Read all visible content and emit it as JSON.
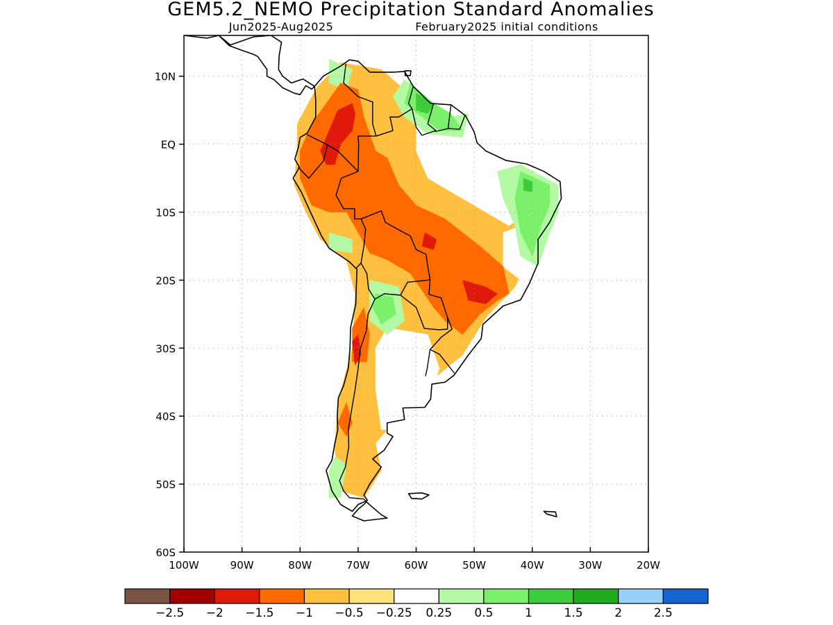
{
  "title": "GEM5.2_NEMO Precipitation Standard Anomalies",
  "subtitle_left": "Jun2025-Aug2025",
  "subtitle_right": "February2025 initial conditions",
  "map": {
    "lon_range": [
      -100,
      -20
    ],
    "lat_range": [
      -60,
      16
    ],
    "grid": true,
    "x_ticks": [
      {
        "lon": -100,
        "label": "100W"
      },
      {
        "lon": -90,
        "label": "90W"
      },
      {
        "lon": -80,
        "label": "80W"
      },
      {
        "lon": -70,
        "label": "70W"
      },
      {
        "lon": -60,
        "label": "60W"
      },
      {
        "lon": -50,
        "label": "50W"
      },
      {
        "lon": -40,
        "label": "40W"
      },
      {
        "lon": -30,
        "label": "30W"
      },
      {
        "lon": -20,
        "label": "20W"
      }
    ],
    "y_ticks": [
      {
        "lat": 10,
        "label": "10N"
      },
      {
        "lat": 0,
        "label": "EQ"
      },
      {
        "lat": -10,
        "label": "10S"
      },
      {
        "lat": -20,
        "label": "20S"
      },
      {
        "lat": -30,
        "label": "30S"
      },
      {
        "lat": -40,
        "label": "40S"
      },
      {
        "lat": -50,
        "label": "50S"
      },
      {
        "lat": -60,
        "label": "60S"
      }
    ]
  },
  "colorbar": {
    "colors": [
      "#7b5345",
      "#a40000",
      "#e01a0a",
      "#ff6a00",
      "#ffbf3f",
      "#ffe27a",
      "#ffffff",
      "#b4f9a4",
      "#7bf06b",
      "#3ccc3c",
      "#1fac1f",
      "#96d2fa",
      "#1464d2"
    ],
    "labels": [
      "-2.5",
      "-2",
      "-1.5",
      "-1",
      "-0.5",
      "-0.25",
      "0.25",
      "0.5",
      "1",
      "1.5",
      "2",
      "2.5"
    ]
  },
  "anomaly_regions": [
    {
      "level": "-0.5",
      "color": "#ffbf3f",
      "points": [
        [
          -80.5,
          3
        ],
        [
          -77,
          8.5
        ],
        [
          -73,
          12
        ],
        [
          -66,
          11
        ],
        [
          -62,
          8
        ],
        [
          -58,
          3.5
        ],
        [
          -52,
          -1
        ],
        [
          -44,
          -3
        ],
        [
          -40,
          -6
        ],
        [
          -39,
          -10
        ],
        [
          -40,
          -16
        ],
        [
          -43,
          -21
        ],
        [
          -48,
          -25.5
        ],
        [
          -52,
          -31
        ],
        [
          -57,
          -34.5
        ],
        [
          -61,
          -38
        ],
        [
          -64,
          -41
        ],
        [
          -67,
          -44
        ],
        [
          -66,
          -48
        ],
        [
          -69,
          -52
        ],
        [
          -73,
          -51
        ],
        [
          -74,
          -45
        ],
        [
          -73.5,
          -38
        ],
        [
          -71,
          -30
        ],
        [
          -70.5,
          -22
        ],
        [
          -72,
          -17
        ],
        [
          -76.5,
          -14
        ],
        [
          -79,
          -10
        ],
        [
          -81,
          -6
        ],
        [
          -80.5,
          -1
        ]
      ]
    },
    {
      "level": "0.25",
      "color": "#ffffff",
      "points": [
        [
          -60,
          4
        ],
        [
          -52,
          2
        ],
        [
          -46,
          0
        ],
        [
          -40,
          -3
        ],
        [
          -38,
          -8
        ],
        [
          -44,
          -12
        ],
        [
          -52,
          -8
        ],
        [
          -58,
          -5
        ],
        [
          -60,
          -1
        ]
      ]
    },
    {
      "level": "0.25",
      "color": "#ffffff",
      "points": [
        [
          -65,
          -27
        ],
        [
          -58,
          -28
        ],
        [
          -56,
          -33
        ],
        [
          -58,
          -38
        ],
        [
          -62,
          -39.5
        ],
        [
          -64,
          -42
        ],
        [
          -66,
          -42
        ],
        [
          -67,
          -36
        ],
        [
          -67,
          -30
        ]
      ]
    },
    {
      "level": "0.25",
      "color": "#ffffff",
      "points": [
        [
          -42,
          -12
        ],
        [
          -40,
          -18
        ],
        [
          -42,
          -20
        ],
        [
          -45,
          -18
        ],
        [
          -45,
          -13
        ]
      ]
    },
    {
      "level": "0.25",
      "color": "#ffffff",
      "points": [
        [
          -68,
          -52
        ],
        [
          -69,
          -54
        ],
        [
          -66,
          -55
        ],
        [
          -64,
          -54.5
        ],
        [
          -66,
          -52
        ]
      ]
    },
    {
      "level": "0.5",
      "color": "#b4f9a4",
      "points": [
        [
          -62,
          9.5
        ],
        [
          -57,
          6
        ],
        [
          -54,
          4
        ],
        [
          -51,
          4.5
        ],
        [
          -52,
          1
        ],
        [
          -58,
          1.5
        ],
        [
          -62,
          4
        ],
        [
          -64,
          7
        ]
      ]
    },
    {
      "level": "0.5",
      "color": "#b4f9a4",
      "points": [
        [
          -42,
          -3
        ],
        [
          -35.5,
          -6
        ],
        [
          -35.5,
          -10
        ],
        [
          -37,
          -13
        ],
        [
          -39,
          -18
        ],
        [
          -42,
          -16.5
        ],
        [
          -43,
          -12
        ],
        [
          -45,
          -8
        ],
        [
          -46,
          -4
        ]
      ]
    },
    {
      "level": "0.5",
      "color": "#b4f9a4",
      "points": [
        [
          -68,
          -20
        ],
        [
          -63,
          -21
        ],
        [
          -62,
          -26
        ],
        [
          -65,
          -28
        ],
        [
          -68,
          -26
        ]
      ]
    },
    {
      "level": "0.5",
      "color": "#b4f9a4",
      "points": [
        [
          -75,
          12.5
        ],
        [
          -71,
          11
        ],
        [
          -72,
          8
        ],
        [
          -75,
          9
        ]
      ]
    },
    {
      "level": "0.5",
      "color": "#b4f9a4",
      "points": [
        [
          -75,
          -13
        ],
        [
          -71,
          -14
        ],
        [
          -71,
          -16
        ],
        [
          -75,
          -15.5
        ]
      ]
    },
    {
      "level": "0.5",
      "color": "#b4f9a4",
      "points": [
        [
          -74,
          -46
        ],
        [
          -72,
          -47
        ],
        [
          -73,
          -52
        ],
        [
          -75,
          -52
        ],
        [
          -75,
          -48
        ]
      ]
    },
    {
      "level": "1",
      "color": "#7bf06b",
      "points": [
        [
          -61,
          9
        ],
        [
          -57,
          6
        ],
        [
          -54,
          4.5
        ],
        [
          -52,
          2
        ],
        [
          -56,
          2
        ],
        [
          -59,
          4
        ],
        [
          -62,
          6
        ]
      ]
    },
    {
      "level": "1",
      "color": "#7bf06b",
      "points": [
        [
          -42,
          -4
        ],
        [
          -37,
          -6
        ],
        [
          -37,
          -9
        ],
        [
          -38.5,
          -12
        ],
        [
          -40,
          -16.5
        ],
        [
          -42,
          -13
        ],
        [
          -43,
          -8
        ]
      ]
    },
    {
      "level": "1",
      "color": "#7bf06b",
      "points": [
        [
          -67,
          -22
        ],
        [
          -64,
          -22.5
        ],
        [
          -63.5,
          -25
        ],
        [
          -66,
          -26.5
        ],
        [
          -67.5,
          -24
        ]
      ]
    },
    {
      "level": "1.5",
      "color": "#3ccc3c",
      "points": [
        [
          -60,
          7.5
        ],
        [
          -57,
          6
        ],
        [
          -58,
          4.5
        ],
        [
          -60,
          5
        ]
      ]
    },
    {
      "level": "1.5",
      "color": "#3ccc3c",
      "points": [
        [
          -41.5,
          -5
        ],
        [
          -40,
          -5.5
        ],
        [
          -40,
          -7
        ],
        [
          -41.5,
          -6.8
        ]
      ]
    },
    {
      "level": "-1",
      "color": "#ff6a00",
      "points": [
        [
          -80,
          -1
        ],
        [
          -78,
          3
        ],
        [
          -75.5,
          6
        ],
        [
          -73,
          9
        ],
        [
          -70,
          8
        ],
        [
          -69,
          4
        ],
        [
          -67,
          -1
        ],
        [
          -65,
          -2
        ],
        [
          -63,
          -6
        ],
        [
          -60,
          -9
        ],
        [
          -55,
          -11
        ],
        [
          -49,
          -15
        ],
        [
          -45,
          -18
        ],
        [
          -44,
          -22
        ],
        [
          -46,
          -23
        ],
        [
          -49,
          -25
        ],
        [
          -52,
          -28
        ],
        [
          -55,
          -26
        ],
        [
          -57,
          -24
        ],
        [
          -61,
          -19
        ],
        [
          -65,
          -17
        ],
        [
          -68,
          -16
        ],
        [
          -70,
          -13
        ],
        [
          -72,
          -10
        ],
        [
          -75,
          -10
        ],
        [
          -78,
          -9
        ],
        [
          -80,
          -5
        ]
      ]
    },
    {
      "level": "-1",
      "color": "#ff6a00",
      "points": [
        [
          -69,
          -24
        ],
        [
          -68,
          -28
        ],
        [
          -68.5,
          -32
        ],
        [
          -71,
          -32
        ],
        [
          -71,
          -27
        ]
      ]
    },
    {
      "level": "-1",
      "color": "#ff6a00",
      "points": [
        [
          -72,
          -38
        ],
        [
          -71,
          -41
        ],
        [
          -72,
          -43
        ],
        [
          -73.5,
          -41
        ]
      ]
    },
    {
      "level": "-1.5",
      "color": "#e01a0a",
      "points": [
        [
          -76.5,
          -1
        ],
        [
          -75,
          2
        ],
        [
          -73.5,
          5
        ],
        [
          -71,
          6
        ],
        [
          -70.5,
          4.5
        ],
        [
          -71,
          2
        ],
        [
          -73,
          0
        ],
        [
          -74,
          -3
        ],
        [
          -75.5,
          -3
        ]
      ]
    },
    {
      "level": "-1.5",
      "color": "#e01a0a",
      "points": [
        [
          -52,
          -20
        ],
        [
          -48,
          -21
        ],
        [
          -46,
          -22
        ],
        [
          -48,
          -23.5
        ],
        [
          -51,
          -23
        ]
      ]
    },
    {
      "level": "-1.5",
      "color": "#e01a0a",
      "points": [
        [
          -70,
          -28
        ],
        [
          -69.5,
          -31
        ],
        [
          -70.5,
          -32.5
        ],
        [
          -71,
          -29
        ]
      ]
    },
    {
      "level": "-1.5",
      "color": "#e01a0a",
      "points": [
        [
          -58.5,
          -13
        ],
        [
          -56.5,
          -14
        ],
        [
          -57,
          -15.5
        ],
        [
          -59,
          -15
        ]
      ]
    }
  ]
}
